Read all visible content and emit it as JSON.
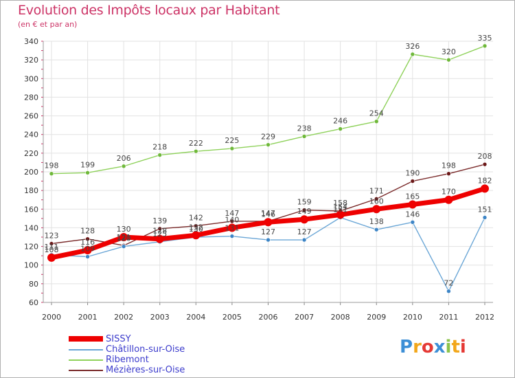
{
  "header": {
    "title": "Evolution des Impôts locaux par Habitant",
    "subtitle": "(en € et par an)"
  },
  "logo": {
    "letters": [
      "P",
      "r",
      "o",
      "x",
      "i",
      "t",
      "i"
    ],
    "colors": [
      "#3d8fd6",
      "#f2a71b",
      "#e53935",
      "#3d8fd6",
      "#8bc34a",
      "#f2a71b",
      "#e53935"
    ]
  },
  "chart_data": {
    "type": "line",
    "title": "Evolution des Impôts locaux par Habitant",
    "subtitle": "(en € et par an)",
    "xlabel": "",
    "ylabel": "",
    "x": [
      "2000",
      "2001",
      "2002",
      "2003",
      "2004",
      "2005",
      "2006",
      "2007",
      "2008",
      "2009",
      "2010",
      "2011",
      "2012"
    ],
    "ylim": [
      60,
      340
    ],
    "yticks": [
      60,
      80,
      100,
      120,
      140,
      160,
      180,
      200,
      220,
      240,
      260,
      280,
      300,
      320,
      340
    ],
    "grid": true,
    "legend_position": "bottom-left",
    "series": [
      {
        "name": "Ribemont",
        "color": "#8ed15a",
        "marker_color": "#6fb83a",
        "values": [
          198,
          199,
          206,
          218,
          222,
          225,
          229,
          238,
          246,
          254,
          326,
          320,
          335
        ],
        "labels": [
          "198",
          "199",
          "206",
          "218",
          "222",
          "225",
          "229",
          "238",
          "246",
          "254",
          "326",
          "320",
          "335"
        ]
      },
      {
        "name": "Mézières-sur-Oise",
        "color": "#7a2a2a",
        "marker_color": "#6b1818",
        "values": [
          123,
          128,
          121,
          139,
          142,
          147,
          147,
          159,
          158,
          171,
          190,
          198,
          208
        ],
        "labels": [
          "123",
          "128",
          "121",
          "139",
          "142",
          "147",
          "147",
          "159",
          "158",
          "171",
          "190",
          "198",
          "208"
        ]
      },
      {
        "name": "Châtillon-sur-Oise",
        "color": "#6aa6d6",
        "marker_color": "#3d85c6",
        "values": [
          111,
          109,
          120,
          125,
          130,
          131,
          127,
          127,
          151,
          138,
          146,
          72,
          151
        ],
        "labels": [
          "111",
          "109",
          "120",
          "125",
          "130",
          "131",
          "127",
          "127",
          "151",
          "138",
          "146",
          "72",
          "151"
        ]
      },
      {
        "name": "SISSY",
        "color": "#ee0000",
        "marker_color": "#ee0000",
        "values": [
          108,
          116,
          130,
          128,
          132,
          140,
          146,
          149,
          154,
          160,
          165,
          170,
          182
        ],
        "labels": [
          "108",
          "116",
          "130",
          "128",
          "132",
          "140",
          "146",
          "149",
          "154",
          "160",
          "165",
          "170",
          "182"
        ]
      }
    ],
    "legend_order": [
      "SISSY",
      "Châtillon-sur-Oise",
      "Ribemont",
      "Mézières-sur-Oise"
    ]
  }
}
